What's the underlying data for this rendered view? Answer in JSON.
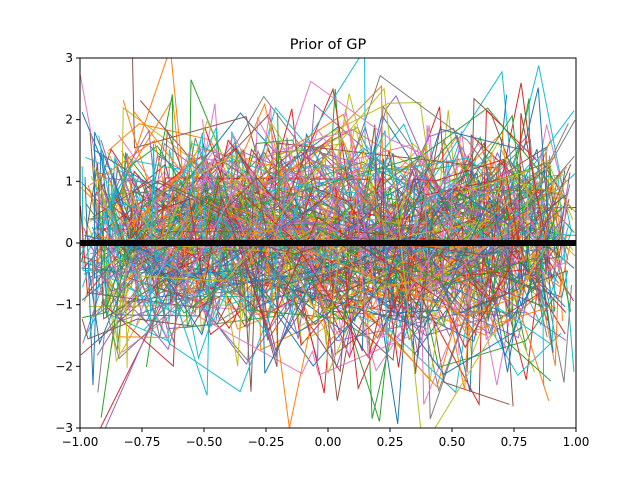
{
  "chart_data": {
    "type": "line",
    "title": "Prior of GP",
    "xlabel": "",
    "ylabel": "",
    "xlim": [
      -1.0,
      1.0
    ],
    "ylim": [
      -3,
      3
    ],
    "xticks": [
      -1.0,
      -0.75,
      -0.5,
      -0.25,
      0.0,
      0.25,
      0.5,
      0.75,
      1.0
    ],
    "xtick_labels": [
      "−1.00",
      "−0.75",
      "−0.50",
      "−0.25",
      "0.00",
      "0.25",
      "0.50",
      "0.75",
      "1.00"
    ],
    "yticks": [
      -3,
      -2,
      -1,
      0,
      1,
      2,
      3
    ],
    "ytick_labels": [
      "−3",
      "−2",
      "−1",
      "0",
      "1",
      "2",
      "3"
    ],
    "grid": false,
    "legend": "none",
    "series_colors": [
      "#1f77b4",
      "#ff7f0e",
      "#2ca02c",
      "#d62728",
      "#9467bd",
      "#8c564b",
      "#e377c2",
      "#7f7f7f",
      "#bcbd22",
      "#17becf"
    ],
    "mean_line": {
      "x": [
        -1.0,
        1.0
      ],
      "y": [
        0,
        0
      ],
      "color": "#000000"
    },
    "samples": {
      "description_of_generation": "",
      "count": 220,
      "points_per_sample": 10,
      "x_range": [
        -1.0,
        1.0
      ],
      "y_mean": 0,
      "y_std": 1
    }
  }
}
